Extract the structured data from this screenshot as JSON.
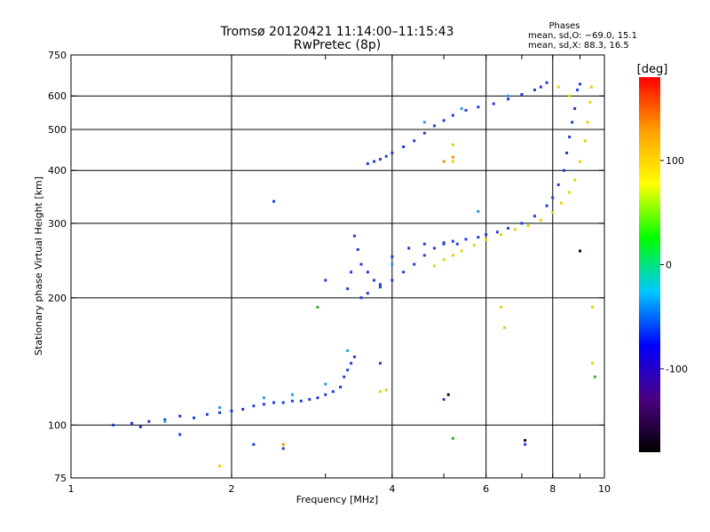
{
  "header": {
    "title": "Tromsø 20120421 11:14:00–11:15:43",
    "subtitle": "RwPretec (8p)",
    "stats_heading": "Phases",
    "stats_o": "mean, sd,O: −69.0, 15.1",
    "stats_x": "mean, sd,X:  88.3, 16.5"
  },
  "chart_data": {
    "type": "scatter",
    "title": "Tromsø 20120421 11:14:00–11:15:43",
    "subtitle": "RwPretec (8p)",
    "xlabel": "Frequency [MHz]",
    "ylabel": "Stationary phase Virtual Height [km]",
    "x_scale": "log",
    "y_scale": "log",
    "xlim": [
      1,
      10
    ],
    "ylim": [
      75,
      750
    ],
    "x_ticks": [
      1,
      2,
      4,
      6,
      8,
      10
    ],
    "x_tick_labels": [
      "1",
      "2",
      "4",
      "6",
      "8",
      "10"
    ],
    "y_ticks": [
      75,
      100,
      200,
      300,
      400,
      500,
      600,
      750
    ],
    "y_tick_labels": [
      "75",
      "100",
      "200",
      "300",
      "400",
      "500",
      "600",
      "750"
    ],
    "grid": true,
    "colorbar": {
      "label": "[deg]",
      "range": [
        -180,
        180
      ],
      "ticks": [
        100,
        0,
        -100
      ],
      "tick_labels": [
        "100",
        "0",
        "-100"
      ],
      "colors": [
        "#000000",
        "#4b0082",
        "#0000ff",
        "#00c8ff",
        "#00ff00",
        "#ffff00",
        "#ffa000",
        "#ff0000"
      ]
    },
    "series": [
      {
        "color": "#1e3cdc",
        "points": [
          [
            1.2,
            100
          ],
          [
            1.3,
            101
          ],
          [
            1.35,
            99
          ],
          [
            1.4,
            102
          ],
          [
            1.5,
            103
          ],
          [
            1.6,
            105
          ],
          [
            1.7,
            104
          ],
          [
            1.8,
            106
          ],
          [
            1.9,
            107
          ],
          [
            2.0,
            108
          ],
          [
            2.1,
            109
          ],
          [
            2.2,
            111
          ],
          [
            2.3,
            112
          ],
          [
            2.4,
            113
          ],
          [
            2.5,
            113
          ],
          [
            2.6,
            114
          ],
          [
            2.7,
            114
          ],
          [
            2.8,
            115
          ],
          [
            2.9,
            116
          ],
          [
            3.0,
            118
          ],
          [
            3.1,
            120
          ],
          [
            3.2,
            123
          ],
          [
            3.25,
            130
          ],
          [
            3.3,
            135
          ],
          [
            3.35,
            140
          ],
          [
            3.4,
            145
          ],
          [
            3.3,
            210
          ],
          [
            3.35,
            230
          ],
          [
            3.4,
            280
          ],
          [
            3.45,
            260
          ],
          [
            3.5,
            240
          ],
          [
            3.6,
            230
          ],
          [
            3.7,
            220
          ],
          [
            3.8,
            215
          ],
          [
            3.5,
            200
          ],
          [
            3.6,
            205
          ],
          [
            3.8,
            212
          ],
          [
            4.0,
            220
          ],
          [
            4.2,
            230
          ],
          [
            4.4,
            240
          ],
          [
            4.6,
            252
          ],
          [
            4.8,
            262
          ],
          [
            5.0,
            270
          ],
          [
            5.2,
            272
          ],
          [
            5.5,
            275
          ],
          [
            5.8,
            278
          ],
          [
            6.0,
            282
          ],
          [
            6.3,
            286
          ],
          [
            6.6,
            292
          ],
          [
            7.0,
            300
          ],
          [
            7.4,
            312
          ],
          [
            7.8,
            330
          ],
          [
            8.0,
            345
          ],
          [
            8.2,
            370
          ],
          [
            8.4,
            400
          ],
          [
            8.5,
            440
          ],
          [
            8.6,
            480
          ],
          [
            8.7,
            520
          ],
          [
            8.8,
            560
          ],
          [
            8.9,
            620
          ],
          [
            9.0,
            640
          ],
          [
            4.0,
            250
          ],
          [
            4.3,
            262
          ],
          [
            4.6,
            268
          ],
          [
            5.0,
            268
          ],
          [
            5.3,
            268
          ],
          [
            3.6,
            415
          ],
          [
            3.7,
            420
          ],
          [
            3.8,
            425
          ],
          [
            3.9,
            432
          ],
          [
            4.0,
            440
          ],
          [
            4.2,
            455
          ],
          [
            4.4,
            470
          ],
          [
            4.6,
            490
          ],
          [
            4.8,
            510
          ],
          [
            5.0,
            525
          ],
          [
            5.2,
            540
          ],
          [
            5.5,
            555
          ],
          [
            5.8,
            565
          ],
          [
            6.2,
            575
          ],
          [
            6.6,
            590
          ],
          [
            7.0,
            605
          ],
          [
            7.4,
            620
          ],
          [
            7.6,
            630
          ],
          [
            7.8,
            645
          ],
          [
            3.8,
            140
          ],
          [
            3.0,
            220
          ],
          [
            2.4,
            338
          ],
          [
            1.6,
            95
          ],
          [
            2.2,
            90
          ],
          [
            2.5,
            88
          ],
          [
            5.0,
            115
          ],
          [
            7.1,
            90
          ]
        ]
      },
      {
        "color": "#1ea0e6",
        "points": [
          [
            1.5,
            102
          ],
          [
            1.9,
            110
          ],
          [
            2.3,
            116
          ],
          [
            2.6,
            118
          ],
          [
            3.0,
            125
          ],
          [
            3.3,
            150
          ],
          [
            4.0,
            240
          ],
          [
            4.6,
            520
          ],
          [
            5.4,
            560
          ],
          [
            6.6,
            600
          ],
          [
            5.8,
            320
          ]
        ]
      },
      {
        "color": "#e6d200",
        "points": [
          [
            4.8,
            238
          ],
          [
            5.0,
            246
          ],
          [
            5.2,
            252
          ],
          [
            5.4,
            258
          ],
          [
            5.7,
            266
          ],
          [
            6.0,
            274
          ],
          [
            6.4,
            282
          ],
          [
            6.8,
            290
          ],
          [
            7.2,
            296
          ],
          [
            7.6,
            305
          ],
          [
            8.0,
            318
          ],
          [
            8.3,
            335
          ],
          [
            8.6,
            355
          ],
          [
            8.8,
            380
          ],
          [
            9.0,
            420
          ],
          [
            9.2,
            470
          ],
          [
            9.3,
            520
          ],
          [
            9.4,
            580
          ],
          [
            9.45,
            630
          ],
          [
            3.8,
            120
          ],
          [
            3.9,
            121
          ],
          [
            5.2,
            460
          ],
          [
            5.2,
            420
          ],
          [
            6.5,
            170
          ],
          [
            6.4,
            190
          ],
          [
            8.6,
            600
          ],
          [
            8.2,
            630
          ],
          [
            9.5,
            190
          ],
          [
            9.5,
            140
          ],
          [
            1.9,
            80
          ]
        ]
      },
      {
        "color": "#ff8c00",
        "points": [
          [
            5.2,
            430
          ],
          [
            5.0,
            420
          ],
          [
            2.5,
            90
          ]
        ]
      },
      {
        "color": "#32b432",
        "points": [
          [
            2.9,
            190
          ],
          [
            5.2,
            93
          ],
          [
            9.6,
            130
          ]
        ]
      },
      {
        "color": "#190019",
        "points": [
          [
            7.1,
            92
          ],
          [
            9.0,
            258
          ],
          [
            5.1,
            118
          ]
        ]
      }
    ]
  }
}
